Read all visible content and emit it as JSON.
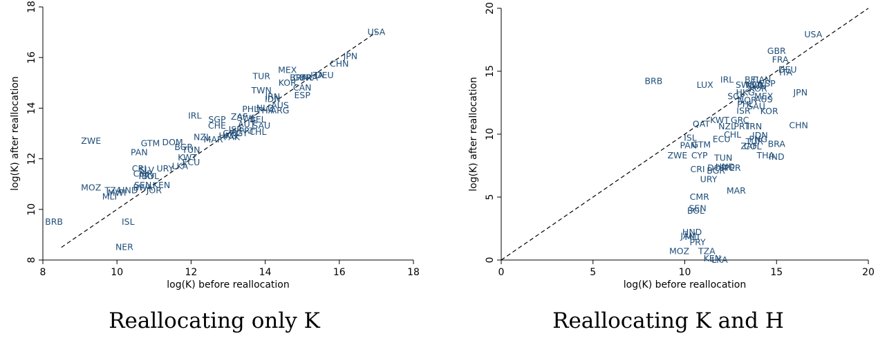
{
  "chart_data": [
    {
      "type": "scatter",
      "caption": "Reallocating only K",
      "xlabel": "log(K) before reallocation",
      "ylabel": "log(K) after reallocation",
      "xlim": [
        8,
        18
      ],
      "ylim": [
        8,
        18
      ],
      "xticks": [
        8,
        10,
        12,
        14,
        16,
        18
      ],
      "yticks": [
        8,
        10,
        12,
        14,
        16,
        18
      ],
      "reference_line": {
        "style": "dashed",
        "x": [
          8.5,
          17.0
        ],
        "y": [
          8.5,
          17.0
        ]
      },
      "label_color": "#1f4e79",
      "points": [
        {
          "label": "USA",
          "x": 17.0,
          "y": 17.0
        },
        {
          "label": "JPN",
          "x": 16.3,
          "y": 16.05
        },
        {
          "label": "CHN",
          "x": 16.0,
          "y": 15.75
        },
        {
          "label": "MEX",
          "x": 14.6,
          "y": 15.5
        },
        {
          "label": "TUR",
          "x": 13.9,
          "y": 15.25
        },
        {
          "label": "DEU",
          "x": 15.6,
          "y": 15.3
        },
        {
          "label": "ITA",
          "x": 15.4,
          "y": 15.3
        },
        {
          "label": "FRA",
          "x": 15.2,
          "y": 15.2
        },
        {
          "label": "GBR",
          "x": 15.0,
          "y": 15.2
        },
        {
          "label": "BRA",
          "x": 14.9,
          "y": 15.2
        },
        {
          "label": "KOR",
          "x": 14.6,
          "y": 15.0
        },
        {
          "label": "CAN",
          "x": 15.0,
          "y": 14.8
        },
        {
          "label": "TWN",
          "x": 13.9,
          "y": 14.7
        },
        {
          "label": "ESP",
          "x": 15.0,
          "y": 14.5
        },
        {
          "label": "IRN",
          "x": 14.2,
          "y": 14.45
        },
        {
          "label": "IDN",
          "x": 14.2,
          "y": 14.35
        },
        {
          "label": "AUS",
          "x": 14.4,
          "y": 14.1
        },
        {
          "label": "NLD",
          "x": 14.0,
          "y": 14.0
        },
        {
          "label": "PHL",
          "x": 13.6,
          "y": 13.95
        },
        {
          "label": "THA",
          "x": 14.0,
          "y": 13.9
        },
        {
          "label": "ARG",
          "x": 14.4,
          "y": 13.9
        },
        {
          "label": "IRL",
          "x": 12.1,
          "y": 13.7
        },
        {
          "label": "ZAF",
          "x": 13.3,
          "y": 13.65
        },
        {
          "label": "SGP",
          "x": 12.7,
          "y": 13.55
        },
        {
          "label": "SWE",
          "x": 13.5,
          "y": 13.6
        },
        {
          "label": "BEL",
          "x": 13.8,
          "y": 13.55
        },
        {
          "label": "CHE",
          "x": 12.7,
          "y": 13.3
        },
        {
          "label": "AUT",
          "x": 13.5,
          "y": 13.35
        },
        {
          "label": "SAU",
          "x": 13.9,
          "y": 13.3
        },
        {
          "label": "NZL",
          "x": 12.3,
          "y": 12.85
        },
        {
          "label": "ISR",
          "x": 13.2,
          "y": 13.15
        },
        {
          "label": "PRT",
          "x": 13.5,
          "y": 13.1
        },
        {
          "label": "CHL",
          "x": 13.8,
          "y": 13.05
        },
        {
          "label": "GRC",
          "x": 13.1,
          "y": 13.0
        },
        {
          "label": "EGY",
          "x": 13.3,
          "y": 13.0
        },
        {
          "label": "PAK",
          "x": 13.1,
          "y": 12.85
        },
        {
          "label": "HKG",
          "x": 13.0,
          "y": 12.9
        },
        {
          "label": "MAR",
          "x": 12.6,
          "y": 12.75
        },
        {
          "label": "DOM",
          "x": 11.5,
          "y": 12.65
        },
        {
          "label": "GTM",
          "x": 10.9,
          "y": 12.6
        },
        {
          "label": "ZWE",
          "x": 9.3,
          "y": 12.7
        },
        {
          "label": "BGR",
          "x": 11.8,
          "y": 12.45
        },
        {
          "label": "TUN",
          "x": 12.0,
          "y": 12.35
        },
        {
          "label": "PAN",
          "x": 10.6,
          "y": 12.25
        },
        {
          "label": "KWT",
          "x": 11.9,
          "y": 12.05
        },
        {
          "label": "ECU",
          "x": 12.0,
          "y": 11.85
        },
        {
          "label": "LKA",
          "x": 11.7,
          "y": 11.7
        },
        {
          "label": "URY",
          "x": 11.3,
          "y": 11.6
        },
        {
          "label": "CRI",
          "x": 10.6,
          "y": 11.6
        },
        {
          "label": "SLV",
          "x": 10.8,
          "y": 11.55
        },
        {
          "label": "CMR",
          "x": 10.7,
          "y": 11.4
        },
        {
          "label": "BOL",
          "x": 10.9,
          "y": 11.3
        },
        {
          "label": "PRY",
          "x": 10.8,
          "y": 11.3
        },
        {
          "label": "SEN",
          "x": 10.7,
          "y": 10.95
        },
        {
          "label": "KEN",
          "x": 11.2,
          "y": 10.95
        },
        {
          "label": "BWA",
          "x": 10.7,
          "y": 10.85
        },
        {
          "label": "JOR",
          "x": 11.0,
          "y": 10.75
        },
        {
          "label": "MOZ",
          "x": 9.3,
          "y": 10.85
        },
        {
          "label": "TZA",
          "x": 9.9,
          "y": 10.75
        },
        {
          "label": "HND",
          "x": 10.3,
          "y": 10.75
        },
        {
          "label": "MWI",
          "x": 10.0,
          "y": 10.65
        },
        {
          "label": "MLI",
          "x": 9.8,
          "y": 10.5
        },
        {
          "label": "BRB",
          "x": 8.3,
          "y": 9.5
        },
        {
          "label": "ISL",
          "x": 10.3,
          "y": 9.5
        },
        {
          "label": "NER",
          "x": 10.2,
          "y": 8.5
        }
      ]
    },
    {
      "type": "scatter",
      "caption": "Reallocating K and H",
      "xlabel": "log(K) before reallocation",
      "ylabel": "log(K) after reallocation",
      "xlim": [
        0,
        20
      ],
      "ylim": [
        0,
        20
      ],
      "xticks": [
        0,
        5,
        10,
        15,
        20
      ],
      "yticks": [
        0,
        5,
        10,
        15,
        20
      ],
      "reference_line": {
        "style": "dashed",
        "x": [
          0,
          20
        ],
        "y": [
          0,
          20
        ]
      },
      "label_color": "#1f4e79",
      "points": [
        {
          "label": "USA",
          "x": 17.0,
          "y": 17.9
        },
        {
          "label": "GBR",
          "x": 15.0,
          "y": 16.6
        },
        {
          "label": "FRA",
          "x": 15.2,
          "y": 15.9
        },
        {
          "label": "DEU",
          "x": 15.6,
          "y": 15.1
        },
        {
          "label": "ITA",
          "x": 15.5,
          "y": 14.9
        },
        {
          "label": "JPN",
          "x": 16.3,
          "y": 13.3
        },
        {
          "label": "BRB",
          "x": 8.3,
          "y": 14.2
        },
        {
          "label": "LUX",
          "x": 11.1,
          "y": 13.9
        },
        {
          "label": "IRL",
          "x": 12.3,
          "y": 14.3
        },
        {
          "label": "BEL",
          "x": 13.7,
          "y": 14.3
        },
        {
          "label": "CAN",
          "x": 14.2,
          "y": 14.3
        },
        {
          "label": "SWE",
          "x": 13.3,
          "y": 13.9
        },
        {
          "label": "NLD",
          "x": 13.8,
          "y": 13.9
        },
        {
          "label": "ESP",
          "x": 14.5,
          "y": 14.0
        },
        {
          "label": "TWN",
          "x": 13.9,
          "y": 13.8
        },
        {
          "label": "HKG",
          "x": 13.3,
          "y": 13.3
        },
        {
          "label": "KOR",
          "x": 14.0,
          "y": 13.6
        },
        {
          "label": "SGP",
          "x": 12.8,
          "y": 13.0
        },
        {
          "label": "MEX",
          "x": 14.3,
          "y": 13.0
        },
        {
          "label": "AUS",
          "x": 14.3,
          "y": 12.75
        },
        {
          "label": "NOR",
          "x": 13.4,
          "y": 12.7
        },
        {
          "label": "PHL",
          "x": 13.3,
          "y": 12.35
        },
        {
          "label": "SAU",
          "x": 13.9,
          "y": 12.2
        },
        {
          "label": "ISR",
          "x": 13.2,
          "y": 11.85
        },
        {
          "label": "KOR",
          "x": 14.6,
          "y": 11.8
        },
        {
          "label": "CHN",
          "x": 16.2,
          "y": 10.7
        },
        {
          "label": "QAT",
          "x": 10.9,
          "y": 10.8
        },
        {
          "label": "KWT",
          "x": 11.9,
          "y": 11.1
        },
        {
          "label": "GRC",
          "x": 13.0,
          "y": 11.1
        },
        {
          "label": "NZL",
          "x": 12.3,
          "y": 10.6
        },
        {
          "label": "PRT",
          "x": 13.1,
          "y": 10.6
        },
        {
          "label": "IRN",
          "x": 13.8,
          "y": 10.6
        },
        {
          "label": "CHL",
          "x": 12.6,
          "y": 9.95
        },
        {
          "label": "IDN",
          "x": 14.1,
          "y": 9.9
        },
        {
          "label": "ECU",
          "x": 12.0,
          "y": 9.6
        },
        {
          "label": "ISL",
          "x": 10.3,
          "y": 9.7
        },
        {
          "label": "BRA",
          "x": 15.0,
          "y": 9.2
        },
        {
          "label": "PNG",
          "x": 14.0,
          "y": 9.6
        },
        {
          "label": "TUR",
          "x": 13.8,
          "y": 9.4
        },
        {
          "label": "COL",
          "x": 13.7,
          "y": 9.0
        },
        {
          "label": "ZAF",
          "x": 13.5,
          "y": 9.05
        },
        {
          "label": "PAN",
          "x": 10.2,
          "y": 9.1
        },
        {
          "label": "GTM",
          "x": 10.9,
          "y": 9.15
        },
        {
          "label": "TUN",
          "x": 12.1,
          "y": 8.1
        },
        {
          "label": "CYP",
          "x": 10.8,
          "y": 8.3
        },
        {
          "label": "ZWE",
          "x": 9.6,
          "y": 8.3
        },
        {
          "label": "THA",
          "x": 14.4,
          "y": 8.3
        },
        {
          "label": "IND",
          "x": 15.0,
          "y": 8.2
        },
        {
          "label": "DOM",
          "x": 11.8,
          "y": 7.3
        },
        {
          "label": "HND",
          "x": 12.2,
          "y": 7.4
        },
        {
          "label": "PER",
          "x": 12.6,
          "y": 7.3
        },
        {
          "label": "CRI",
          "x": 10.7,
          "y": 7.2
        },
        {
          "label": "BGR",
          "x": 11.7,
          "y": 7.1
        },
        {
          "label": "URY",
          "x": 11.3,
          "y": 6.4
        },
        {
          "label": "MAR",
          "x": 12.8,
          "y": 5.5
        },
        {
          "label": "CMR",
          "x": 10.8,
          "y": 5.0
        },
        {
          "label": "SEN",
          "x": 10.7,
          "y": 4.1
        },
        {
          "label": "BOL",
          "x": 10.6,
          "y": 3.9
        },
        {
          "label": "HND",
          "x": 10.4,
          "y": 2.2
        },
        {
          "label": "JAM",
          "x": 10.2,
          "y": 1.9
        },
        {
          "label": "MLI",
          "x": 10.4,
          "y": 1.8
        },
        {
          "label": "PRY",
          "x": 10.7,
          "y": 1.4
        },
        {
          "label": "MOZ",
          "x": 9.7,
          "y": 0.7
        },
        {
          "label": "TZA",
          "x": 11.2,
          "y": 0.7
        },
        {
          "label": "KEN",
          "x": 11.5,
          "y": 0.1
        },
        {
          "label": "LKA",
          "x": 11.9,
          "y": 0.0
        }
      ]
    }
  ]
}
